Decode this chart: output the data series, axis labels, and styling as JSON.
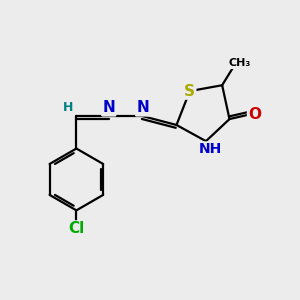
{
  "bg_color": "#ececec",
  "bond_color": "#000000",
  "atom_colors": {
    "S": "#aaaa00",
    "N": "#0000cc",
    "O": "#cc0000",
    "Cl": "#00aa00",
    "C": "#000000",
    "H": "#008080"
  },
  "font_size": 10,
  "lw": 1.6
}
